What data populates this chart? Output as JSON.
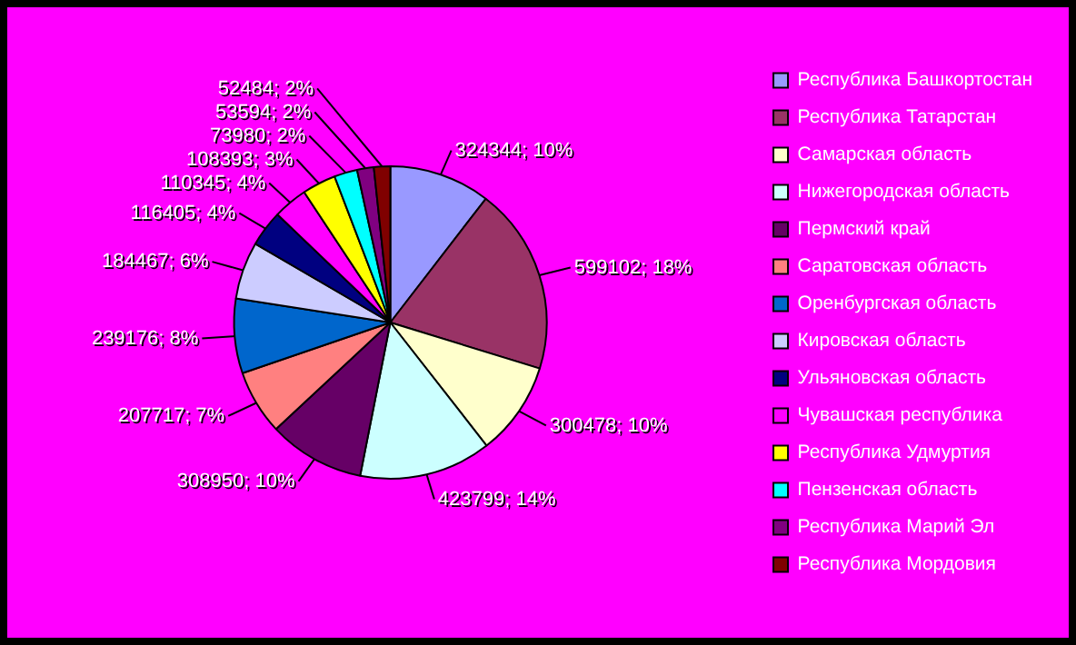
{
  "chart_data": {
    "type": "pie",
    "categories": [
      "Республика Башкортостан",
      "Республика Татарстан",
      "Самарская область",
      "Нижегородская область",
      "Пермский край",
      "Саратовская область",
      "Оренбургская область",
      "Кировская область",
      "Ульяновская область",
      "Чувашская республика",
      "Республика Удмуртия",
      "Пензенская область",
      "Республика Марий Эл",
      "Республика Мордовия"
    ],
    "values": [
      324344,
      599102,
      300478,
      423799,
      308950,
      207717,
      239176,
      184467,
      116405,
      110345,
      108393,
      73980,
      53594,
      52484
    ],
    "value_labels": [
      "324344; 10%",
      "599102; 18%",
      "300478; 10%",
      "423799; 14%",
      "308950; 10%",
      "207717; 7%",
      "239176; 8%",
      "184467; 6%",
      "116405; 4%",
      "110345; 4%",
      "108393; 3%",
      "73980; 2%",
      "53594; 2%",
      "52484; 2%"
    ],
    "colors": [
      "#9999ff",
      "#993366",
      "#ffffcc",
      "#ccffff",
      "#660066",
      "#ff8080",
      "#0066cc",
      "#ccccff",
      "#000080",
      "#ff00ff",
      "#ffff00",
      "#00ffff",
      "#800080",
      "#800000"
    ],
    "legend": "right"
  }
}
